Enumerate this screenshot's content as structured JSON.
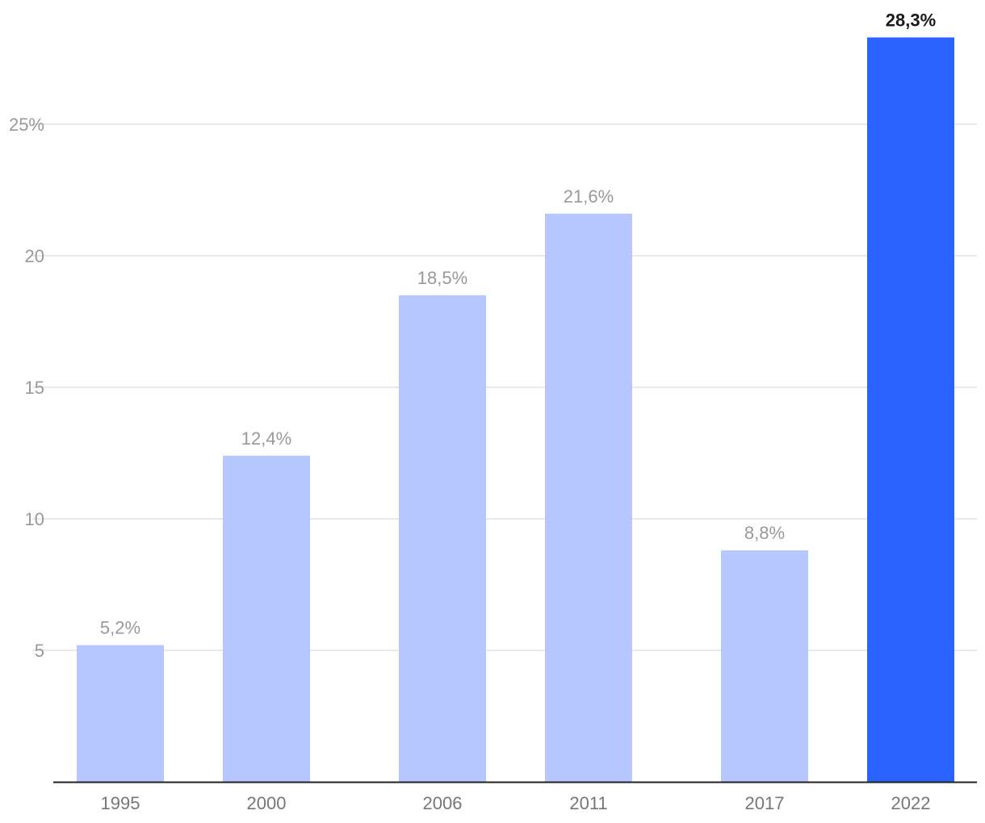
{
  "chart_data": {
    "type": "bar",
    "categories": [
      "1995",
      "2000",
      "2006",
      "2011",
      "2017",
      "2022"
    ],
    "values": [
      5.2,
      12.4,
      18.5,
      21.6,
      8.8,
      28.3
    ],
    "data_labels": [
      "5,2%",
      "12,4%",
      "18,5%",
      "21,6%",
      "8,8%",
      "28,3%"
    ],
    "highlighted_index": 5,
    "y_ticks": [
      {
        "value": 5,
        "label": "5"
      },
      {
        "value": 10,
        "label": "10"
      },
      {
        "value": 15,
        "label": "15"
      },
      {
        "value": 20,
        "label": "20"
      },
      {
        "value": 25,
        "label": "25%"
      }
    ],
    "ylim": [
      0,
      28.3
    ],
    "grid": true,
    "legend": "none",
    "title": "",
    "xlabel": "",
    "ylabel": "",
    "colors": {
      "bar": "#b6c7ff",
      "bar_highlight": "#2962ff",
      "grid": "#e2e2e2",
      "baseline": "#222222"
    }
  }
}
